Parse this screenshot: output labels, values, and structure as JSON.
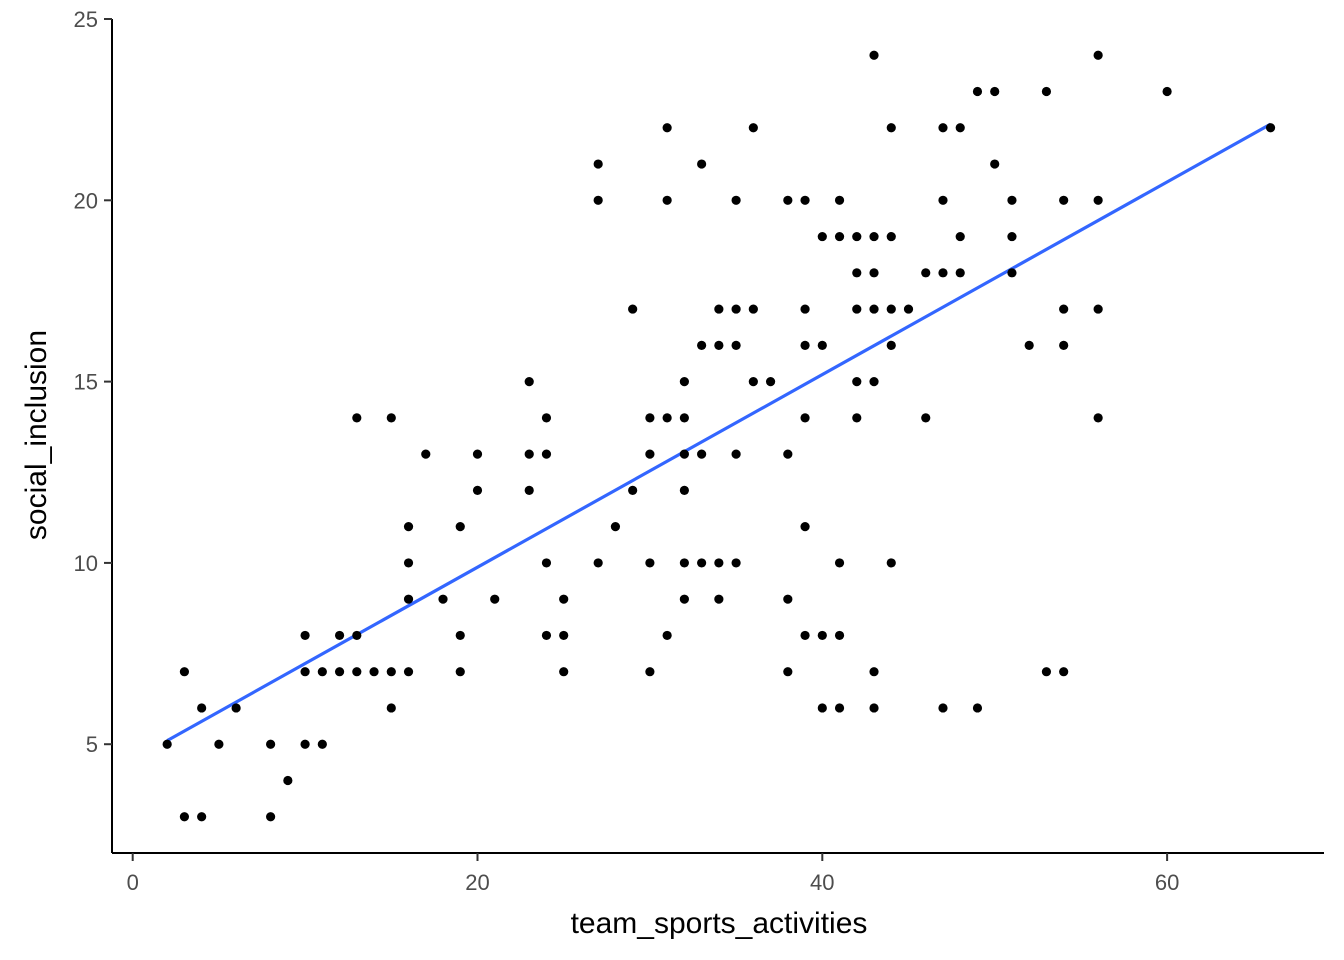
{
  "chart_data": {
    "type": "scatter",
    "title": "",
    "xlabel": "team_sports_activities",
    "ylabel": "social_inclusion",
    "xlim": [
      -1.2,
      69.1
    ],
    "ylim": [
      2.0,
      25.0
    ],
    "x_ticks": [
      0,
      20,
      40,
      60
    ],
    "y_ticks": [
      5,
      10,
      15,
      20,
      25
    ],
    "grid": false,
    "legend": "none",
    "point_color": "#000000",
    "trend_color": "#3366FF",
    "trend_line": {
      "type": "linear",
      "x": [
        2,
        66
      ],
      "y": [
        5.1,
        22.1
      ]
    },
    "points": [
      [
        2,
        5
      ],
      [
        3,
        7
      ],
      [
        3,
        3
      ],
      [
        4,
        6
      ],
      [
        4,
        3
      ],
      [
        5,
        5
      ],
      [
        6,
        6
      ],
      [
        8,
        5
      ],
      [
        8,
        3
      ],
      [
        9,
        4
      ],
      [
        10,
        8
      ],
      [
        10,
        7
      ],
      [
        10,
        5
      ],
      [
        11,
        7
      ],
      [
        11,
        5
      ],
      [
        12,
        8
      ],
      [
        12,
        7
      ],
      [
        13,
        14
      ],
      [
        13,
        8
      ],
      [
        13,
        7
      ],
      [
        14,
        7
      ],
      [
        15,
        14
      ],
      [
        15,
        7
      ],
      [
        15,
        6
      ],
      [
        16,
        11
      ],
      [
        16,
        10
      ],
      [
        16,
        9
      ],
      [
        16,
        7
      ],
      [
        17,
        13
      ],
      [
        18,
        9
      ],
      [
        19,
        11
      ],
      [
        19,
        8
      ],
      [
        19,
        7
      ],
      [
        20,
        13
      ],
      [
        20,
        12
      ],
      [
        21,
        9
      ],
      [
        23,
        15
      ],
      [
        23,
        13
      ],
      [
        23,
        12
      ],
      [
        24,
        14
      ],
      [
        24,
        13
      ],
      [
        24,
        10
      ],
      [
        24,
        8
      ],
      [
        25,
        9
      ],
      [
        25,
        8
      ],
      [
        25,
        7
      ],
      [
        27,
        21
      ],
      [
        27,
        20
      ],
      [
        27,
        10
      ],
      [
        28,
        11
      ],
      [
        29,
        17
      ],
      [
        29,
        12
      ],
      [
        30,
        14
      ],
      [
        30,
        13
      ],
      [
        30,
        10
      ],
      [
        30,
        7
      ],
      [
        31,
        22
      ],
      [
        31,
        20
      ],
      [
        31,
        14
      ],
      [
        31,
        8
      ],
      [
        32,
        15
      ],
      [
        32,
        14
      ],
      [
        32,
        13
      ],
      [
        32,
        12
      ],
      [
        32,
        10
      ],
      [
        32,
        9
      ],
      [
        33,
        21
      ],
      [
        33,
        16
      ],
      [
        33,
        13
      ],
      [
        33,
        10
      ],
      [
        34,
        17
      ],
      [
        34,
        16
      ],
      [
        34,
        10
      ],
      [
        34,
        9
      ],
      [
        35,
        20
      ],
      [
        35,
        17
      ],
      [
        35,
        16
      ],
      [
        35,
        13
      ],
      [
        35,
        10
      ],
      [
        36,
        22
      ],
      [
        36,
        17
      ],
      [
        36,
        15
      ],
      [
        37,
        15
      ],
      [
        38,
        20
      ],
      [
        38,
        13
      ],
      [
        38,
        9
      ],
      [
        38,
        7
      ],
      [
        39,
        20
      ],
      [
        39,
        17
      ],
      [
        39,
        16
      ],
      [
        39,
        14
      ],
      [
        39,
        11
      ],
      [
        39,
        8
      ],
      [
        40,
        19
      ],
      [
        40,
        16
      ],
      [
        40,
        8
      ],
      [
        40,
        6
      ],
      [
        41,
        20
      ],
      [
        41,
        19
      ],
      [
        41,
        10
      ],
      [
        41,
        8
      ],
      [
        41,
        6
      ],
      [
        42,
        19
      ],
      [
        42,
        18
      ],
      [
        42,
        17
      ],
      [
        42,
        15
      ],
      [
        42,
        14
      ],
      [
        43,
        24
      ],
      [
        43,
        19
      ],
      [
        43,
        18
      ],
      [
        43,
        17
      ],
      [
        43,
        15
      ],
      [
        43,
        7
      ],
      [
        43,
        6
      ],
      [
        44,
        22
      ],
      [
        44,
        19
      ],
      [
        44,
        17
      ],
      [
        44,
        16
      ],
      [
        44,
        10
      ],
      [
        45,
        17
      ],
      [
        46,
        18
      ],
      [
        46,
        14
      ],
      [
        47,
        22
      ],
      [
        47,
        20
      ],
      [
        47,
        18
      ],
      [
        47,
        6
      ],
      [
        48,
        22
      ],
      [
        48,
        19
      ],
      [
        48,
        18
      ],
      [
        49,
        23
      ],
      [
        49,
        6
      ],
      [
        50,
        23
      ],
      [
        50,
        21
      ],
      [
        51,
        20
      ],
      [
        51,
        19
      ],
      [
        51,
        18
      ],
      [
        52,
        16
      ],
      [
        53,
        23
      ],
      [
        53,
        7
      ],
      [
        54,
        20
      ],
      [
        54,
        17
      ],
      [
        54,
        16
      ],
      [
        54,
        7
      ],
      [
        56,
        24
      ],
      [
        56,
        20
      ],
      [
        56,
        17
      ],
      [
        56,
        14
      ],
      [
        60,
        23
      ],
      [
        66,
        22
      ]
    ]
  }
}
